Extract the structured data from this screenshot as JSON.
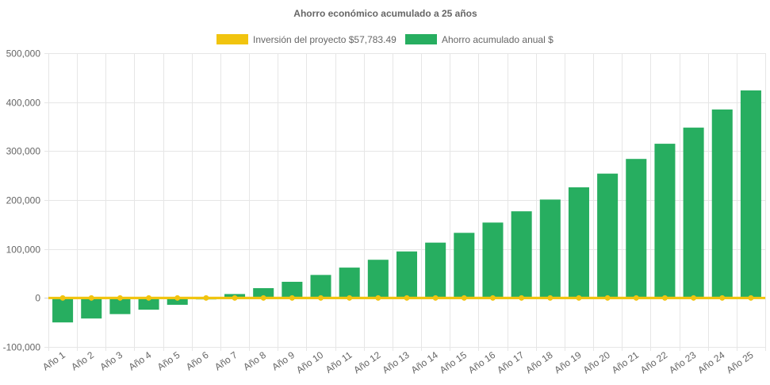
{
  "chart_data": {
    "type": "bar",
    "title": "Ahorro económico acumulado a 25 años",
    "categories": [
      "Año 1",
      "Año 2",
      "Año 3",
      "Año 4",
      "Año 5",
      "Año 6",
      "Año 7",
      "Año 8",
      "Año 9",
      "Año 10",
      "Año 11",
      "Año 12",
      "Año 13",
      "Año 14",
      "Año 15",
      "Año 16",
      "Año 17",
      "Año 18",
      "Año 19",
      "Año 20",
      "Año 21",
      "Año 22",
      "Año 23",
      "Año 24",
      "Año 25"
    ],
    "series": [
      {
        "name": "Inversión del proyecto $57,783.49",
        "type": "line",
        "color": "#f1c40f",
        "values": [
          0,
          0,
          0,
          0,
          0,
          0,
          0,
          0,
          0,
          0,
          0,
          0,
          0,
          0,
          0,
          0,
          0,
          0,
          0,
          0,
          0,
          0,
          0,
          0,
          0
        ]
      },
      {
        "name": "Ahorro acumulado anual $",
        "type": "bar",
        "color": "#27ae60",
        "values": [
          -50000,
          -42000,
          -33000,
          -24000,
          -14000,
          -3000,
          8000,
          20000,
          33000,
          47000,
          62000,
          78000,
          95000,
          113000,
          133000,
          154000,
          177000,
          201000,
          226000,
          254000,
          284000,
          315000,
          348000,
          385000,
          424000
        ]
      }
    ],
    "xlabel": "",
    "ylabel": "",
    "ylim": [
      -100000,
      500000
    ],
    "yticks": [
      {
        "value": 500000,
        "label": "500,000"
      },
      {
        "value": 400000,
        "label": "400,000"
      },
      {
        "value": 300000,
        "label": "300,000"
      },
      {
        "value": 200000,
        "label": "200,000"
      },
      {
        "value": 100000,
        "label": "100,000"
      },
      {
        "value": 0,
        "label": "0"
      },
      {
        "value": -100000,
        "label": "-100,000"
      }
    ],
    "grid": true,
    "legend_position": "top"
  }
}
